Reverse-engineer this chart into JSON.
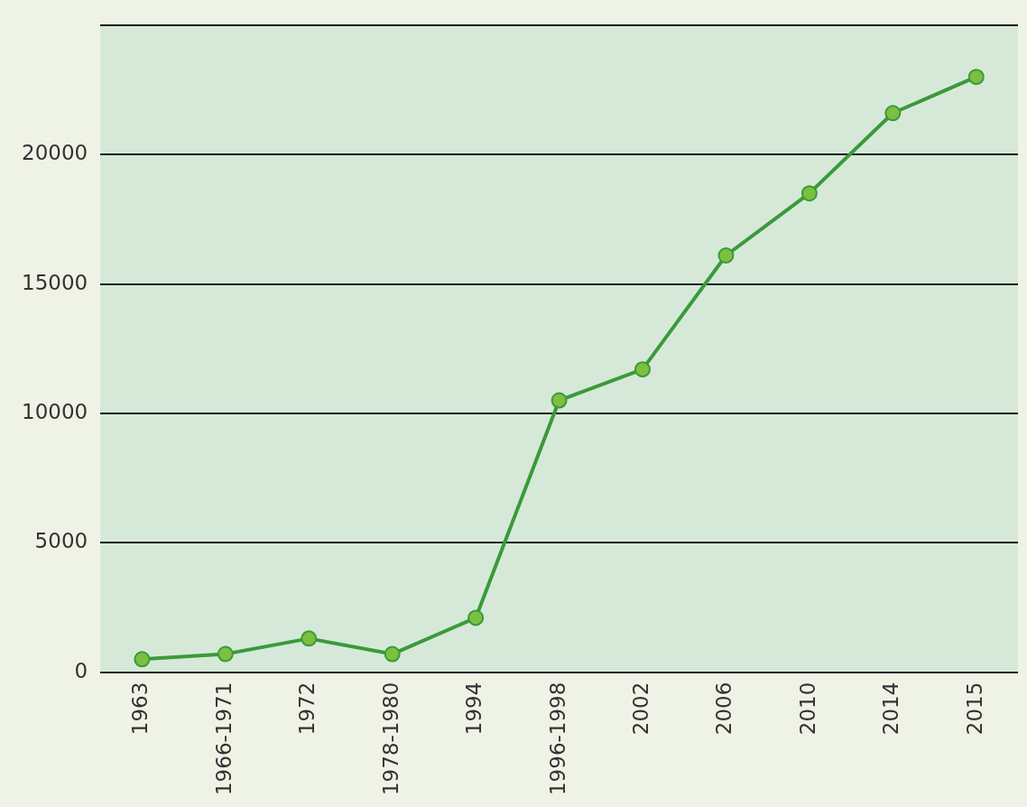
{
  "chart_data": {
    "type": "line",
    "categories": [
      "1963",
      "1966-1971",
      "1972",
      "1978-1980",
      "1994",
      "1996-1998",
      "2002",
      "2006",
      "2010",
      "2014",
      "2015"
    ],
    "series": [
      {
        "color": "#3a9a3a",
        "values": [
          500,
          700,
          1300,
          700,
          2100,
          10500,
          11700,
          16100,
          18500,
          21600,
          23000
        ]
      }
    ],
    "ylim": [
      0,
      25000
    ],
    "yticks": [
      0,
      5000,
      10000,
      15000,
      20000,
      {
        "value": 25000,
        "label": null
      }
    ],
    "grid": "y",
    "legend": false,
    "marker": "circle",
    "line_style": "solid"
  }
}
